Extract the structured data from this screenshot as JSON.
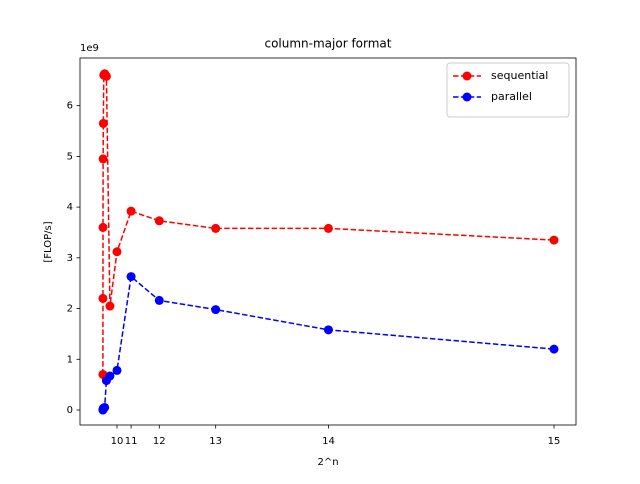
{
  "chart_data": {
    "type": "line",
    "title": "column-major format",
    "xlabel": "2^n",
    "ylabel": "[FLOP/s]",
    "y_offset_label": "1e9",
    "x": [
      2,
      4,
      8,
      16,
      32,
      64,
      128,
      256,
      512,
      1024,
      2048,
      4096,
      8192,
      16384,
      32768
    ],
    "series": [
      {
        "name": "sequential",
        "color": "#ff0000",
        "values": [
          700000000,
          2200000000,
          3600000000,
          4950000000,
          5650000000,
          6600000000,
          6630000000,
          6580000000,
          2050000000,
          3120000000,
          3920000000,
          3730000000,
          3580000000,
          3580000000,
          3350000000
        ]
      },
      {
        "name": "parallel",
        "color": "#0000ff",
        "values": [
          0,
          0,
          10000000,
          20000000,
          30000000,
          40000000,
          50000000,
          580000000,
          670000000,
          780000000,
          2630000000,
          2160000000,
          1980000000,
          1580000000,
          1200000000
        ]
      }
    ],
    "xlim": [
      -1663,
      34366
    ],
    "xticks": [
      {
        "value": 1024,
        "label": "10"
      },
      {
        "value": 2048,
        "label": "11"
      },
      {
        "value": 4096,
        "label": "12"
      },
      {
        "value": 8192,
        "label": "13"
      },
      {
        "value": 16384,
        "label": "14"
      },
      {
        "value": 32768,
        "label": "15"
      }
    ],
    "ylim": [
      -296000000,
      6940000000
    ],
    "yticks": [
      {
        "value": 0,
        "label": "0"
      },
      {
        "value": 1000000000,
        "label": "1"
      },
      {
        "value": 2000000000,
        "label": "2"
      },
      {
        "value": 3000000000,
        "label": "3"
      },
      {
        "value": 4000000000,
        "label": "4"
      },
      {
        "value": 5000000000,
        "label": "5"
      },
      {
        "value": 6000000000,
        "label": "6"
      }
    ],
    "legend": "upper right",
    "linestyle": "dashed"
  }
}
